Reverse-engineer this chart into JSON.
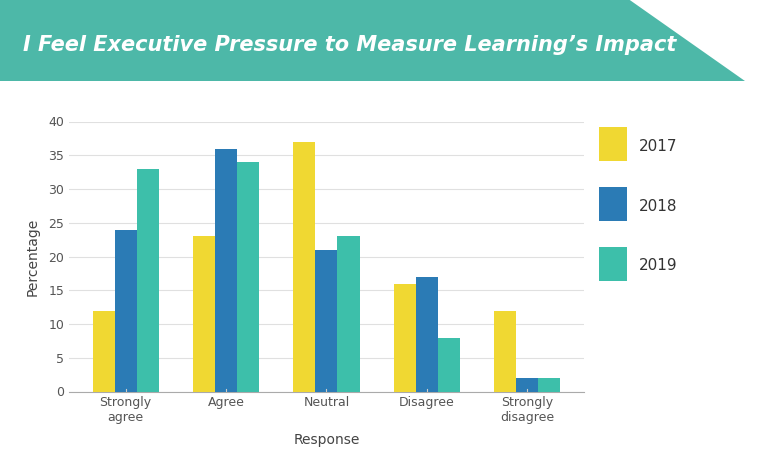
{
  "title": "I Feel Executive Pressure to Measure Learning’s Impact",
  "title_bg_color": "#4db8a8",
  "categories": [
    "Strongly\nagree",
    "Agree",
    "Neutral",
    "Disagree",
    "Strongly\ndisagree"
  ],
  "series": {
    "2017": [
      12,
      23,
      37,
      16,
      12
    ],
    "2018": [
      24,
      36,
      21,
      17,
      2
    ],
    "2019": [
      33,
      34,
      23,
      8,
      2
    ]
  },
  "colors": {
    "2017": "#f0d832",
    "2018": "#2b7bb5",
    "2019": "#3dbfaa"
  },
  "xlabel": "Response",
  "ylabel": "Percentage",
  "ylim": [
    0,
    40
  ],
  "yticks": [
    0,
    5,
    10,
    15,
    20,
    25,
    30,
    35,
    40
  ],
  "bar_width": 0.22,
  "background_color": "#ffffff",
  "legend_labels": [
    "2017",
    "2018",
    "2019"
  ],
  "title_fontsize": 15,
  "axis_label_fontsize": 10,
  "tick_fontsize": 9,
  "legend_fontsize": 11
}
